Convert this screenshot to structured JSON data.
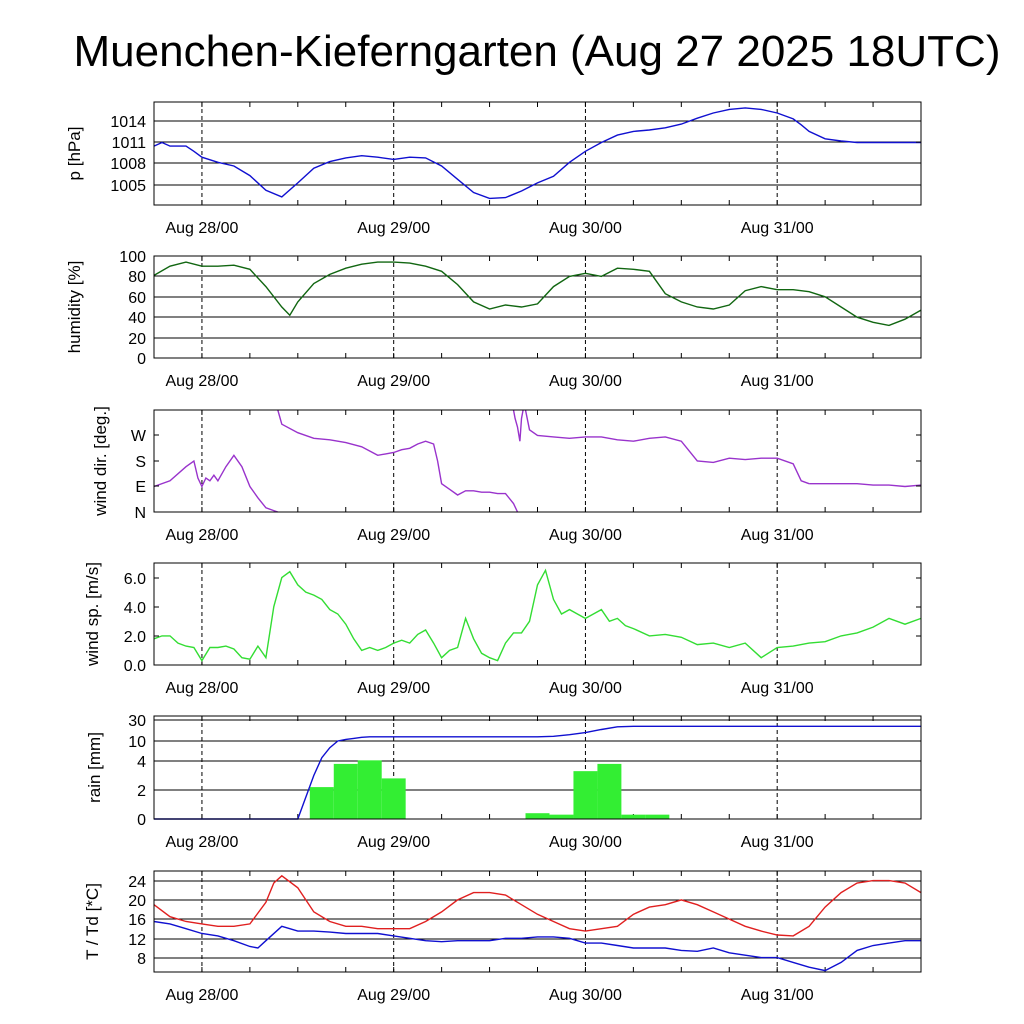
{
  "title": "Muenchen-Kieferngarten (Aug 27 2025 18UTC)",
  "colors": {
    "pressure": "#1010d0",
    "humidity": "#116611",
    "wind_dir": "#9933cc",
    "wind_speed": "#33dd33",
    "rain_bar": "#33ee33",
    "rain_cum": "#1010d0",
    "temperature": "#e02020",
    "dewpoint": "#1010d0"
  },
  "chart_data": [
    {
      "type": "line",
      "ylabel": "p [hPa]",
      "x_tick_labels": [
        "Aug 28/00",
        "Aug 29/00",
        "Aug 30/00",
        "Aug 31/00"
      ],
      "y_ticks": [
        "1014",
        "1011",
        "1008",
        "1005"
      ],
      "ylim": [
        1002.5,
        1016.5
      ],
      "grid": true,
      "series": [
        {
          "key": "pressure",
          "x": [
            0,
            1,
            2,
            4,
            5,
            6,
            8,
            10,
            12,
            14,
            16,
            18,
            20,
            22,
            24,
            26,
            28,
            30,
            32,
            34,
            36,
            38,
            40,
            42,
            44,
            46,
            48,
            50,
            52,
            54,
            56,
            58,
            60,
            62,
            64,
            66,
            68,
            70,
            72,
            74,
            76,
            78,
            80,
            81,
            82,
            84,
            86,
            88,
            90,
            92,
            94,
            96
          ],
          "y": [
            1010.5,
            1011.0,
            1010.5,
            1010.5,
            1009.8,
            1009.0,
            1008.3,
            1007.8,
            1006.5,
            1004.5,
            1003.6,
            1005.5,
            1007.5,
            1008.4,
            1008.9,
            1009.2,
            1009.0,
            1008.7,
            1009.0,
            1008.9,
            1007.8,
            1006.0,
            1004.2,
            1003.4,
            1003.5,
            1004.4,
            1005.5,
            1006.4,
            1008.3,
            1009.8,
            1011.0,
            1012.0,
            1012.5,
            1012.7,
            1013.0,
            1013.5,
            1014.3,
            1015.0,
            1015.5,
            1015.7,
            1015.5,
            1015.0,
            1014.2,
            1013.4,
            1012.5,
            1011.5,
            1011.2,
            1011.0,
            1011.0,
            1011.0,
            1011.0,
            1011.0
          ]
        }
      ]
    },
    {
      "type": "line",
      "ylabel": "humidity [%]",
      "x_tick_labels": [
        "Aug 28/00",
        "Aug 29/00",
        "Aug 30/00",
        "Aug 31/00"
      ],
      "y_ticks": [
        "0",
        "20",
        "40",
        "60",
        "80",
        "100"
      ],
      "ylim": [
        0,
        100
      ],
      "grid": true,
      "series": [
        {
          "key": "humidity",
          "x": [
            0,
            2,
            4,
            6,
            8,
            10,
            12,
            14,
            16,
            17,
            18,
            20,
            22,
            24,
            26,
            28,
            30,
            32,
            34,
            36,
            38,
            40,
            42,
            44,
            46,
            48,
            50,
            52,
            54,
            56,
            58,
            60,
            62,
            64,
            66,
            68,
            70,
            72,
            74,
            76,
            78,
            80,
            82,
            84,
            86,
            88,
            90,
            92,
            94,
            96
          ],
          "y": [
            81,
            90,
            94,
            90,
            90,
            91,
            87,
            70,
            50,
            42,
            55,
            73,
            82,
            88,
            92,
            94,
            94,
            93,
            90,
            85,
            72,
            55,
            48,
            52,
            50,
            53,
            70,
            80,
            83,
            80,
            88,
            87,
            85,
            63,
            55,
            50,
            48,
            52,
            66,
            70,
            67,
            67,
            65,
            60,
            50,
            40,
            35,
            32,
            38,
            47
          ]
        }
      ]
    },
    {
      "type": "scatter",
      "ylabel": "wind dir. [deg.]",
      "x_tick_labels": [
        "Aug 28/00",
        "Aug 29/00",
        "Aug 30/00",
        "Aug 31/00"
      ],
      "y_ticks": [
        "N",
        "E",
        "S",
        "W"
      ],
      "ylim": [
        0,
        360
      ],
      "grid": false,
      "segments": [
        {
          "x": [
            0,
            2,
            4,
            5,
            5.5,
            6,
            6.5,
            7,
            7.5,
            8,
            9,
            10,
            11,
            12,
            13,
            14,
            15,
            15.5
          ],
          "y": [
            90,
            110,
            160,
            180,
            120,
            90,
            120,
            110,
            130,
            110,
            160,
            200,
            160,
            90,
            50,
            15,
            5,
            0
          ]
        },
        {
          "x": [
            15.5,
            16,
            18,
            20,
            22,
            24,
            26,
            28,
            29,
            30,
            31,
            32,
            33,
            34,
            35,
            35.5
          ],
          "y": [
            360,
            310,
            280,
            260,
            255,
            245,
            230,
            200,
            205,
            210,
            220,
            225,
            240,
            250,
            240,
            180
          ]
        },
        {
          "x": [
            35.5,
            36,
            37,
            38,
            39,
            40,
            41,
            42,
            43,
            44,
            45,
            45.5
          ],
          "y": [
            180,
            100,
            80,
            60,
            75,
            75,
            70,
            70,
            65,
            65,
            30,
            0
          ]
        },
        {
          "x": [
            45,
            45.2,
            45.5,
            45.8,
            46,
            46.2
          ],
          "y": [
            360,
            330,
            300,
            250,
            330,
            360
          ]
        },
        {
          "x": [
            46.5,
            47,
            48,
            50,
            52,
            54,
            56,
            58,
            60,
            62,
            64,
            66,
            68,
            70,
            72,
            74,
            76,
            78,
            80,
            81,
            82
          ],
          "y": [
            360,
            290,
            270,
            265,
            260,
            265,
            265,
            255,
            250,
            260,
            265,
            250,
            180,
            175,
            190,
            185,
            190,
            190,
            170,
            110,
            100
          ]
        },
        {
          "x": [
            82,
            84,
            86,
            88,
            90,
            92,
            94,
            96
          ],
          "y": [
            100,
            100,
            100,
            100,
            95,
            95,
            90,
            95
          ]
        }
      ]
    },
    {
      "type": "line",
      "ylabel": "wind sp. [m/s]",
      "x_tick_labels": [
        "Aug 28/00",
        "Aug 29/00",
        "Aug 30/00",
        "Aug 31/00"
      ],
      "y_ticks": [
        "0.0",
        "2.0",
        "4.0",
        "6.0"
      ],
      "ylim": [
        0,
        7
      ],
      "grid": false,
      "series": [
        {
          "key": "wind_speed",
          "x": [
            0,
            1,
            2,
            3,
            4,
            5,
            6,
            7,
            8,
            9,
            10,
            11,
            12,
            13,
            14,
            15,
            16,
            17,
            18,
            19,
            20,
            21,
            22,
            23,
            24,
            25,
            26,
            27,
            28,
            29,
            30,
            31,
            32,
            33,
            34,
            35,
            36,
            37,
            38,
            39,
            40,
            41,
            42,
            43,
            44,
            45,
            46,
            47,
            48,
            49,
            50,
            51,
            52,
            53,
            54,
            55,
            56,
            57,
            58,
            59,
            60,
            62,
            64,
            66,
            68,
            70,
            72,
            74,
            76,
            78,
            80,
            82,
            84,
            86,
            88,
            90,
            92,
            94,
            96
          ],
          "y": [
            1.8,
            2.0,
            2.0,
            1.5,
            1.3,
            1.2,
            0.3,
            1.2,
            1.2,
            1.3,
            1.1,
            0.5,
            0.4,
            1.3,
            0.5,
            4.0,
            6.0,
            6.4,
            5.5,
            5.0,
            4.8,
            4.5,
            3.8,
            3.5,
            2.8,
            1.8,
            1.0,
            1.2,
            1.0,
            1.2,
            1.5,
            1.7,
            1.5,
            2.1,
            2.4,
            1.5,
            0.5,
            1.0,
            1.2,
            3.2,
            1.8,
            0.8,
            0.5,
            0.3,
            1.5,
            2.2,
            2.2,
            3.0,
            5.5,
            6.5,
            4.5,
            3.5,
            3.8,
            3.5,
            3.2,
            3.5,
            3.8,
            3.0,
            3.2,
            2.7,
            2.5,
            2.0,
            2.1,
            1.9,
            1.4,
            1.5,
            1.2,
            1.5,
            0.5,
            1.2,
            1.3,
            1.5,
            1.6,
            2.0,
            2.2,
            2.6,
            3.2,
            2.8,
            3.2
          ]
        }
      ]
    },
    {
      "type": "bar",
      "ylabel": "rain [mm]",
      "x_tick_labels": [
        "Aug 28/00",
        "Aug 29/00",
        "Aug 30/00",
        "Aug 31/00"
      ],
      "y_ticks": [
        "0",
        "2",
        "4",
        "10",
        "30"
      ],
      "y_tick_levels": [
        0,
        1,
        2,
        3,
        4
      ],
      "grid": true,
      "bars": {
        "x_start": [
          19.5,
          22.5,
          25.5,
          28.5,
          46.5,
          49.5,
          52.5,
          55.5,
          58.5,
          61.5
        ],
        "values": [
          2.2,
          3.8,
          4.2,
          2.8,
          0.4,
          0.3,
          3.3,
          3.8,
          0.3,
          0.3
        ],
        "width": 3
      },
      "cumulative": {
        "x": [
          0,
          18,
          19,
          20,
          21,
          22,
          23,
          24,
          25,
          26,
          27,
          28,
          29,
          30,
          40,
          48,
          50,
          52,
          54,
          56,
          58,
          60,
          70,
          80,
          96
        ],
        "y": [
          0,
          0,
          1.5,
          3,
          5,
          8,
          10,
          11.5,
          12.5,
          13.5,
          14,
          14,
          14,
          14,
          14,
          14,
          14.5,
          16,
          18,
          21,
          23.5,
          24,
          24,
          24,
          24
        ]
      }
    },
    {
      "type": "line",
      "ylabel": "T / Td [*C]",
      "x_tick_labels": [
        "Aug 28/00",
        "Aug 29/00",
        "Aug 30/00",
        "Aug 31/00"
      ],
      "y_ticks": [
        "8",
        "12",
        "16",
        "20",
        "24"
      ],
      "ylim": [
        5.5,
        26.5
      ],
      "grid": true,
      "series": [
        {
          "key": "temperature",
          "x": [
            0,
            2,
            4,
            6,
            8,
            10,
            12,
            14,
            15,
            16,
            18,
            20,
            22,
            24,
            26,
            28,
            30,
            32,
            34,
            36,
            38,
            40,
            42,
            44,
            46,
            48,
            50,
            52,
            54,
            56,
            58,
            60,
            62,
            64,
            66,
            68,
            70,
            72,
            74,
            76,
            78,
            80,
            82,
            84,
            86,
            88,
            90,
            92,
            94,
            96
          ],
          "y": [
            19.5,
            17,
            16,
            15.5,
            15,
            15,
            15.5,
            20,
            24,
            25.5,
            23,
            18,
            16,
            15,
            15,
            14.5,
            14.5,
            14.5,
            16,
            18,
            20.5,
            22,
            22,
            21.5,
            19.5,
            17.5,
            16,
            14.5,
            14,
            14.5,
            15,
            17.5,
            19,
            19.5,
            20.5,
            19.5,
            18,
            16.5,
            15,
            14,
            13.2,
            13,
            15,
            19,
            22,
            24,
            24.5,
            24.5,
            24,
            22
          ]
        },
        {
          "key": "dewpoint",
          "x": [
            0,
            2,
            4,
            6,
            8,
            10,
            12,
            13,
            14,
            16,
            18,
            20,
            22,
            24,
            26,
            28,
            30,
            32,
            34,
            36,
            38,
            40,
            42,
            44,
            46,
            48,
            50,
            52,
            54,
            56,
            58,
            60,
            62,
            64,
            66,
            68,
            70,
            72,
            74,
            76,
            78,
            80,
            82,
            84,
            86,
            88,
            90,
            92,
            94,
            96
          ],
          "y": [
            16,
            15.5,
            14.5,
            13.5,
            13,
            12,
            10.8,
            10.5,
            12,
            15,
            14,
            14,
            13.8,
            13.5,
            13.5,
            13.5,
            13,
            12.5,
            12,
            11.8,
            12,
            12,
            12,
            12.5,
            12.5,
            12.8,
            12.8,
            12.5,
            11.5,
            11.5,
            11,
            10.5,
            10.5,
            10.5,
            10,
            9.8,
            10.5,
            9.5,
            9,
            8.5,
            8.5,
            7.5,
            6.5,
            5.8,
            7.5,
            10,
            11,
            11.5,
            12,
            12
          ]
        }
      ]
    }
  ]
}
